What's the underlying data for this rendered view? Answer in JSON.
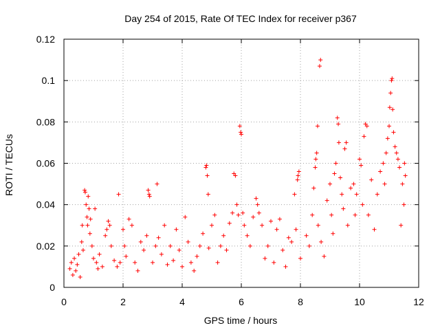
{
  "chart_data": {
    "type": "scatter",
    "title": "Day 254 of 2015, Rate Of TEC Index for receiver p367",
    "xlabel": "GPS time / hours",
    "ylabel": "ROTI / TECUs",
    "xlim": [
      0,
      12
    ],
    "ylim": [
      0,
      0.12
    ],
    "x_ticks": [
      0,
      2,
      4,
      6,
      8,
      10,
      12
    ],
    "y_ticks": [
      0,
      0.02,
      0.04,
      0.06,
      0.08,
      0.1,
      0.12
    ],
    "x_tick_labels": [
      "0",
      "2",
      "4",
      "6",
      "8",
      "10",
      "12"
    ],
    "y_tick_labels": [
      "0",
      "0.02",
      "0.04",
      "0.06",
      "0.08",
      "0.1",
      "0.12"
    ],
    "grid": true,
    "marker": "+",
    "marker_color": "#ff0000",
    "series": [
      {
        "name": "ROTI",
        "points": [
          [
            0.2,
            0.009
          ],
          [
            0.25,
            0.012
          ],
          [
            0.3,
            0.006
          ],
          [
            0.35,
            0.014
          ],
          [
            0.4,
            0.008
          ],
          [
            0.45,
            0.011
          ],
          [
            0.5,
            0.016
          ],
          [
            0.55,
            0.005
          ],
          [
            0.6,
            0.022
          ],
          [
            0.62,
            0.03
          ],
          [
            0.65,
            0.018
          ],
          [
            0.7,
            0.047
          ],
          [
            0.72,
            0.046
          ],
          [
            0.75,
            0.04
          ],
          [
            0.78,
            0.034
          ],
          [
            0.8,
            0.03
          ],
          [
            0.82,
            0.044
          ],
          [
            0.85,
            0.038
          ],
          [
            0.88,
            0.026
          ],
          [
            0.9,
            0.033
          ],
          [
            0.95,
            0.02
          ],
          [
            1.0,
            0.014
          ],
          [
            1.05,
            0.038
          ],
          [
            1.1,
            0.012
          ],
          [
            1.15,
            0.009
          ],
          [
            1.2,
            0.016
          ],
          [
            1.3,
            0.01
          ],
          [
            1.4,
            0.025
          ],
          [
            1.45,
            0.028
          ],
          [
            1.5,
            0.032
          ],
          [
            1.55,
            0.03
          ],
          [
            1.6,
            0.02
          ],
          [
            1.7,
            0.013
          ],
          [
            1.8,
            0.01
          ],
          [
            1.85,
            0.045
          ],
          [
            1.9,
            0.012
          ],
          [
            2.0,
            0.028
          ],
          [
            2.05,
            0.02
          ],
          [
            2.1,
            0.015
          ],
          [
            2.2,
            0.033
          ],
          [
            2.3,
            0.03
          ],
          [
            2.4,
            0.012
          ],
          [
            2.5,
            0.008
          ],
          [
            2.6,
            0.022
          ],
          [
            2.7,
            0.018
          ],
          [
            2.8,
            0.025
          ],
          [
            2.85,
            0.047
          ],
          [
            2.88,
            0.045
          ],
          [
            2.9,
            0.044
          ],
          [
            3.0,
            0.012
          ],
          [
            3.1,
            0.02
          ],
          [
            3.15,
            0.05
          ],
          [
            3.2,
            0.024
          ],
          [
            3.3,
            0.016
          ],
          [
            3.4,
            0.03
          ],
          [
            3.5,
            0.011
          ],
          [
            3.6,
            0.02
          ],
          [
            3.7,
            0.013
          ],
          [
            3.8,
            0.028
          ],
          [
            3.9,
            0.018
          ],
          [
            4.0,
            0.01
          ],
          [
            4.1,
            0.034
          ],
          [
            4.2,
            0.022
          ],
          [
            4.3,
            0.012
          ],
          [
            4.4,
            0.008
          ],
          [
            4.5,
            0.015
          ],
          [
            4.6,
            0.02
          ],
          [
            4.7,
            0.026
          ],
          [
            4.8,
            0.058
          ],
          [
            4.82,
            0.059
          ],
          [
            4.85,
            0.054
          ],
          [
            4.88,
            0.045
          ],
          [
            4.9,
            0.019
          ],
          [
            5.0,
            0.03
          ],
          [
            5.1,
            0.035
          ],
          [
            5.2,
            0.012
          ],
          [
            5.3,
            0.02
          ],
          [
            5.4,
            0.025
          ],
          [
            5.5,
            0.018
          ],
          [
            5.6,
            0.031
          ],
          [
            5.7,
            0.036
          ],
          [
            5.75,
            0.055
          ],
          [
            5.8,
            0.054
          ],
          [
            5.85,
            0.04
          ],
          [
            5.9,
            0.035
          ],
          [
            5.95,
            0.078
          ],
          [
            5.98,
            0.075
          ],
          [
            6.0,
            0.074
          ],
          [
            6.05,
            0.036
          ],
          [
            6.1,
            0.03
          ],
          [
            6.2,
            0.025
          ],
          [
            6.3,
            0.02
          ],
          [
            6.4,
            0.034
          ],
          [
            6.5,
            0.043
          ],
          [
            6.55,
            0.04
          ],
          [
            6.6,
            0.036
          ],
          [
            6.7,
            0.03
          ],
          [
            6.8,
            0.014
          ],
          [
            6.9,
            0.02
          ],
          [
            7.0,
            0.032
          ],
          [
            7.1,
            0.012
          ],
          [
            7.2,
            0.028
          ],
          [
            7.3,
            0.033
          ],
          [
            7.4,
            0.018
          ],
          [
            7.5,
            0.01
          ],
          [
            7.6,
            0.024
          ],
          [
            7.7,
            0.022
          ],
          [
            7.8,
            0.045
          ],
          [
            7.85,
            0.028
          ],
          [
            7.9,
            0.052
          ],
          [
            7.92,
            0.054
          ],
          [
            7.95,
            0.056
          ],
          [
            8.0,
            0.014
          ],
          [
            8.2,
            0.025
          ],
          [
            8.3,
            0.02
          ],
          [
            8.4,
            0.035
          ],
          [
            8.45,
            0.048
          ],
          [
            8.5,
            0.058
          ],
          [
            8.52,
            0.062
          ],
          [
            8.55,
            0.065
          ],
          [
            8.58,
            0.078
          ],
          [
            8.6,
            0.03
          ],
          [
            8.65,
            0.107
          ],
          [
            8.68,
            0.11
          ],
          [
            8.7,
            0.022
          ],
          [
            8.8,
            0.015
          ],
          [
            8.9,
            0.042
          ],
          [
            9.0,
            0.05
          ],
          [
            9.05,
            0.035
          ],
          [
            9.1,
            0.026
          ],
          [
            9.15,
            0.055
          ],
          [
            9.2,
            0.06
          ],
          [
            9.25,
            0.082
          ],
          [
            9.28,
            0.079
          ],
          [
            9.3,
            0.07
          ],
          [
            9.35,
            0.053
          ],
          [
            9.4,
            0.045
          ],
          [
            9.45,
            0.038
          ],
          [
            9.5,
            0.067
          ],
          [
            9.55,
            0.07
          ],
          [
            9.6,
            0.03
          ],
          [
            9.7,
            0.048
          ],
          [
            9.8,
            0.05
          ],
          [
            9.85,
            0.035
          ],
          [
            9.9,
            0.045
          ],
          [
            10.0,
            0.062
          ],
          [
            10.05,
            0.059
          ],
          [
            10.1,
            0.04
          ],
          [
            10.15,
            0.073
          ],
          [
            10.2,
            0.079
          ],
          [
            10.25,
            0.078
          ],
          [
            10.3,
            0.035
          ],
          [
            10.4,
            0.052
          ],
          [
            10.5,
            0.028
          ],
          [
            10.6,
            0.045
          ],
          [
            10.7,
            0.056
          ],
          [
            10.8,
            0.06
          ],
          [
            10.85,
            0.05
          ],
          [
            10.9,
            0.065
          ],
          [
            10.95,
            0.072
          ],
          [
            11.0,
            0.078
          ],
          [
            11.02,
            0.087
          ],
          [
            11.05,
            0.094
          ],
          [
            11.08,
            0.1
          ],
          [
            11.1,
            0.101
          ],
          [
            11.12,
            0.086
          ],
          [
            11.15,
            0.075
          ],
          [
            11.2,
            0.068
          ],
          [
            11.25,
            0.065
          ],
          [
            11.3,
            0.062
          ],
          [
            11.35,
            0.058
          ],
          [
            11.4,
            0.03
          ],
          [
            11.45,
            0.05
          ],
          [
            11.5,
            0.04
          ],
          [
            11.52,
            0.06
          ],
          [
            11.55,
            0.054
          ]
        ]
      }
    ]
  }
}
